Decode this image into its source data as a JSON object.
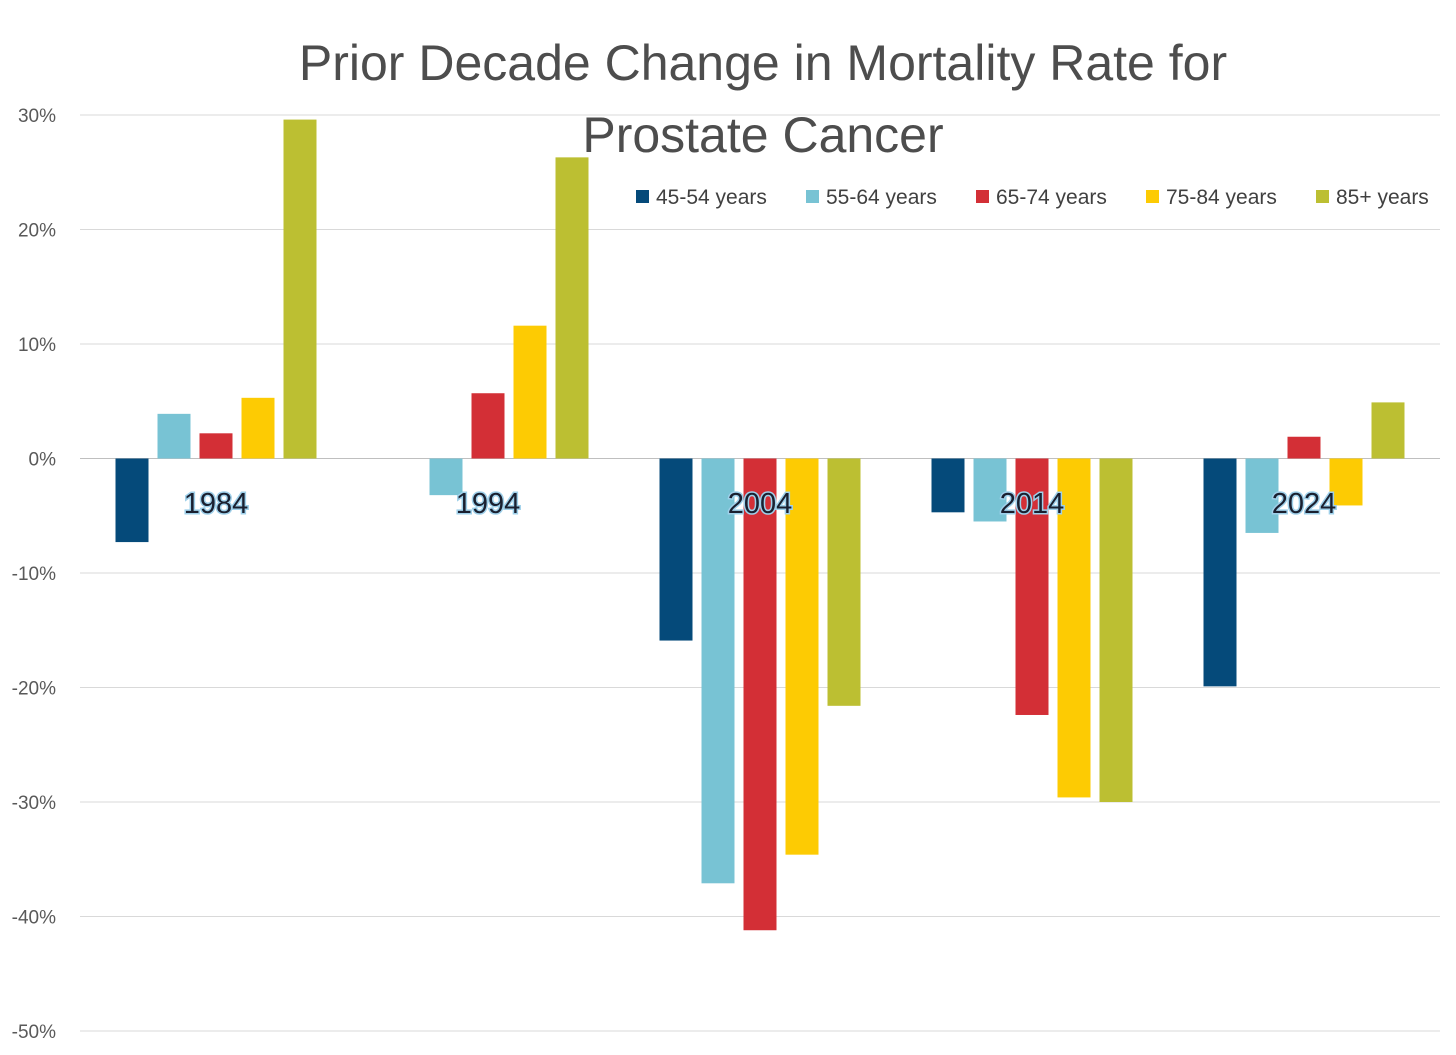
{
  "chart_data": {
    "type": "bar",
    "title": "Prior Decade Change in Mortality Rate for Prostate Cancer",
    "title_lines": [
      "Prior Decade Change in Mortality Rate for",
      "Prostate Cancer"
    ],
    "xlabel": "",
    "ylabel": "",
    "categories": [
      "1984",
      "1994",
      "2004",
      "2014",
      "2024"
    ],
    "ylim": [
      -50,
      30
    ],
    "yticks": [
      30,
      20,
      10,
      0,
      -10,
      -20,
      -30,
      -40,
      -50
    ],
    "ytick_labels": [
      "30%",
      "20%",
      "10%",
      "0%",
      "-10%",
      "-20%",
      "-30%",
      "-40%",
      "-50%"
    ],
    "grid": true,
    "legend_position": "top-right",
    "series": [
      {
        "name": "45-54 years",
        "color": "#054a7a",
        "values": [
          -7.3,
          0,
          -15.9,
          -4.7,
          -19.9
        ]
      },
      {
        "name": "55-64 years",
        "color": "#78c3d4",
        "values": [
          3.9,
          -3.2,
          -37.1,
          -5.5,
          -6.5
        ]
      },
      {
        "name": "65-74 years",
        "color": "#d32f36",
        "values": [
          2.2,
          5.7,
          -41.2,
          -22.4,
          1.9
        ]
      },
      {
        "name": "75-84 years",
        "color": "#fdcb03",
        "values": [
          5.3,
          11.6,
          -34.6,
          -29.6,
          -4.1
        ]
      },
      {
        "name": "85+ years",
        "color": "#bcbf32",
        "values": [
          29.6,
          26.3,
          -21.6,
          -30.0,
          4.9
        ]
      }
    ]
  }
}
